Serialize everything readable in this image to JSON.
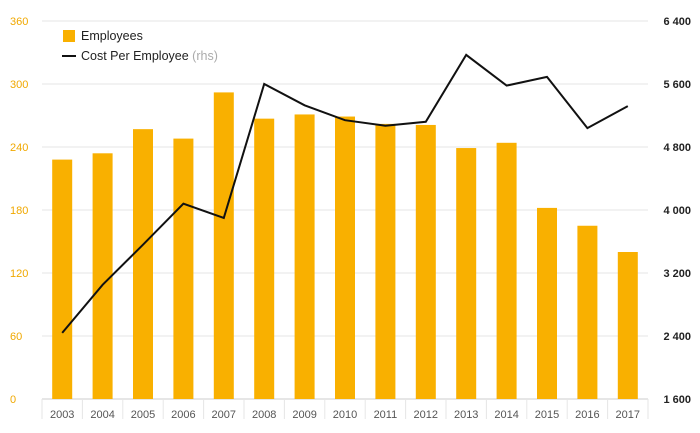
{
  "chart_data": {
    "type": "bar+line",
    "categories": [
      "2003",
      "2004",
      "2005",
      "2006",
      "2007",
      "2008",
      "2009",
      "2010",
      "2011",
      "2012",
      "2013",
      "2014",
      "2015",
      "2016",
      "2017"
    ],
    "series": [
      {
        "name": "Employees",
        "type": "bar",
        "axis": "left",
        "values": [
          228,
          234,
          257,
          248,
          292,
          267,
          271,
          269,
          262,
          261,
          239,
          244,
          182,
          165,
          140
        ]
      },
      {
        "name": "Cost Per Employee",
        "name_suffix": "(rhs)",
        "type": "line",
        "axis": "right",
        "values": [
          2440,
          3050,
          3560,
          4080,
          3900,
          5600,
          5330,
          5140,
          5070,
          5120,
          5970,
          5580,
          5690,
          5040,
          5320
        ]
      }
    ],
    "y_left": {
      "ticks": [
        "0",
        "60",
        "120",
        "180",
        "240",
        "300",
        "360"
      ],
      "range": [
        0,
        360
      ]
    },
    "y_right": {
      "ticks": [
        "1 600",
        "2 400",
        "3 200",
        "4 000",
        "4 800",
        "5 600",
        "6 400"
      ],
      "range": [
        1600,
        6400
      ]
    },
    "legend_position": "top-left",
    "grid": true,
    "colors": {
      "bar": "#f9b000",
      "line": "#111111",
      "left_ticks": "#f0a800",
      "grid": "#e6e6e6"
    }
  }
}
